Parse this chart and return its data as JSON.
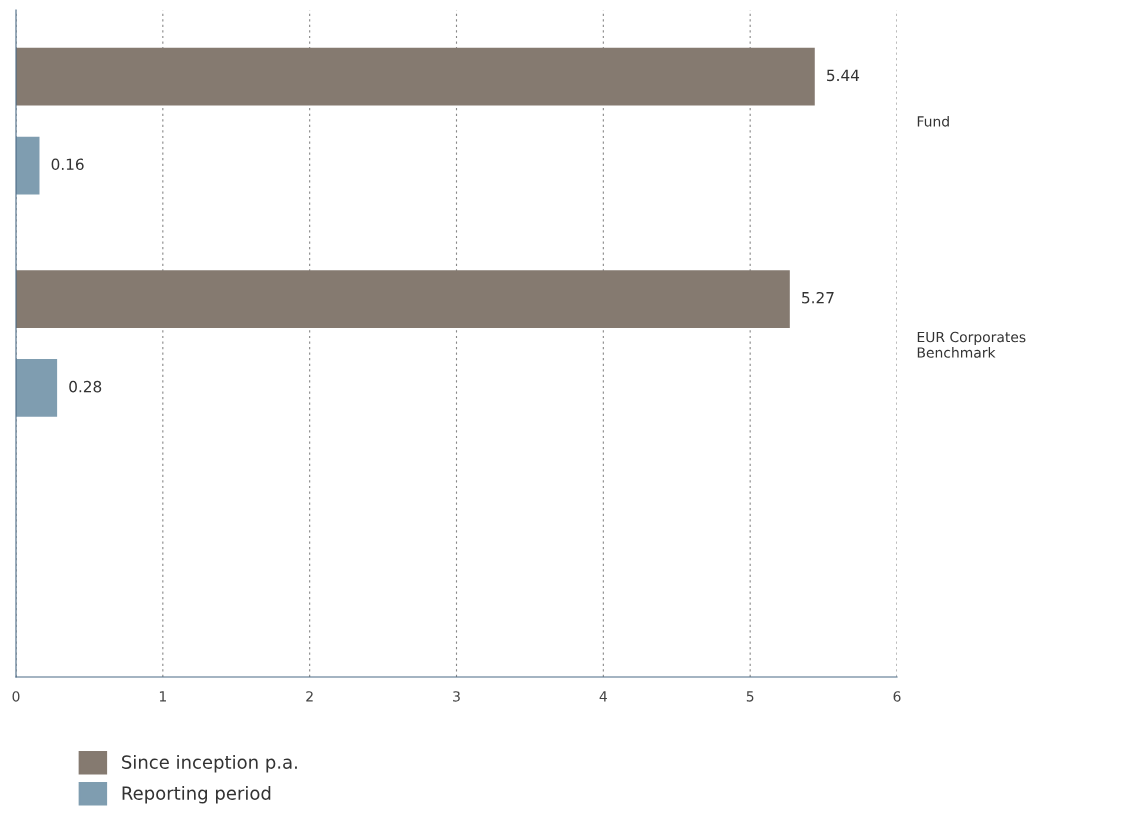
{
  "chart_data": {
    "type": "bar",
    "orientation": "horizontal",
    "categories": [
      "Fund",
      "EUR Corporates\nBenchmark",
      null
    ],
    "series": [
      {
        "name": "Since inception p.a.",
        "color": "#857a70",
        "values": [
          5.44,
          5.27,
          null
        ]
      },
      {
        "name": "Reporting period",
        "color": "#7f9db0",
        "values": [
          0.16,
          0.28,
          null
        ]
      }
    ],
    "xlim": [
      0,
      6
    ],
    "xticks": [
      0,
      1,
      2,
      3,
      4,
      5,
      6
    ],
    "grid": "x",
    "legend": "bottom left",
    "data_labels": true
  }
}
